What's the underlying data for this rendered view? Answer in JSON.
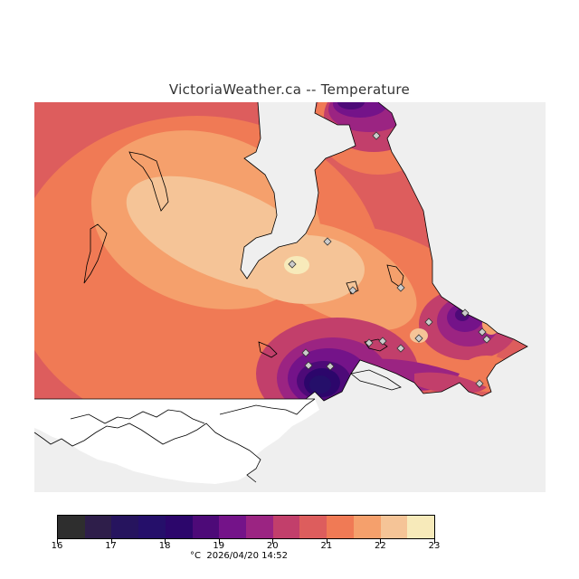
{
  "title": "VictoriaWeather.ca -- Temperature",
  "footer": {
    "unit": "°C",
    "timestamp": "2026/04/20 14:52"
  },
  "colorbar": {
    "tick_labels": [
      "16",
      "17",
      "18",
      "19",
      "20",
      "21",
      "22",
      "23"
    ],
    "colors": [
      "#2e2e2e",
      "#2e1e4a",
      "#26145e",
      "#250f6a",
      "#2c066b",
      "#4d0a78",
      "#741389",
      "#9b2482",
      "#c23f6b",
      "#dd5d5d",
      "#f07a55",
      "#f5a06c",
      "#f5c497",
      "#f7eaba"
    ]
  },
  "map": {
    "background": "#efefef",
    "land_color": "#ffffff",
    "coast_color": "#000000",
    "station_icon": "diamond-icon",
    "stations": 17
  }
}
